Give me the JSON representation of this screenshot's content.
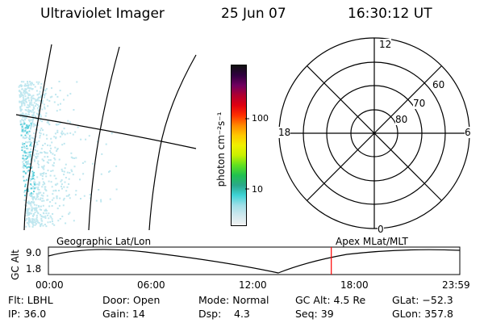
{
  "header": {
    "title": "Ultraviolet Imager",
    "date": "25 Jun 07",
    "time": "16:30:12 UT"
  },
  "colorbar": {
    "label": "photon cm⁻²s⁻¹",
    "ticks": [
      "100",
      "10"
    ],
    "scale": "log",
    "colors": [
      "#f2f2f2",
      "#cfe8ee",
      "#9fdfe8",
      "#3fd3d6",
      "#2aa88a",
      "#20c050",
      "#60e020",
      "#c8f000",
      "#f0f000",
      "#ffc800",
      "#ff8800",
      "#ff3000",
      "#e00010",
      "#b00030",
      "#700060",
      "#300040",
      "#101010"
    ]
  },
  "polar_plot": {
    "clock_labels": [
      "12",
      "18",
      "6",
      "0"
    ],
    "lat_labels": [
      "60",
      "70",
      "80"
    ]
  },
  "timeline": {
    "left_label": "Geographic Lat/Lon",
    "right_label": "Apex MLat/MLT",
    "y_axis_label": "GC Alt",
    "y_ticks": [
      "9.0",
      "1.8"
    ],
    "x_ticks": [
      "00:00",
      "06:00",
      "12:00",
      "18:00",
      "23:59"
    ],
    "marker_time": "16:30:12",
    "marker_color": "#ff0000"
  },
  "footer": {
    "filt": "Flt: LBHL",
    "ip": "IP: 36.0",
    "door": "Door: Open",
    "gain": "Gain: 14",
    "mode": "Mode: Normal",
    "dsp_label": "Dsp:",
    "dsp_value": "4.3",
    "gc_alt": "GC Alt: 4.5 Re",
    "seq": "Seq: 39",
    "glat": "GLat: −52.3",
    "glon": "GLon: 357.8"
  },
  "image_colors": {
    "aurora": "#5fd0dc",
    "aurora_light": "#bfe7ef"
  }
}
